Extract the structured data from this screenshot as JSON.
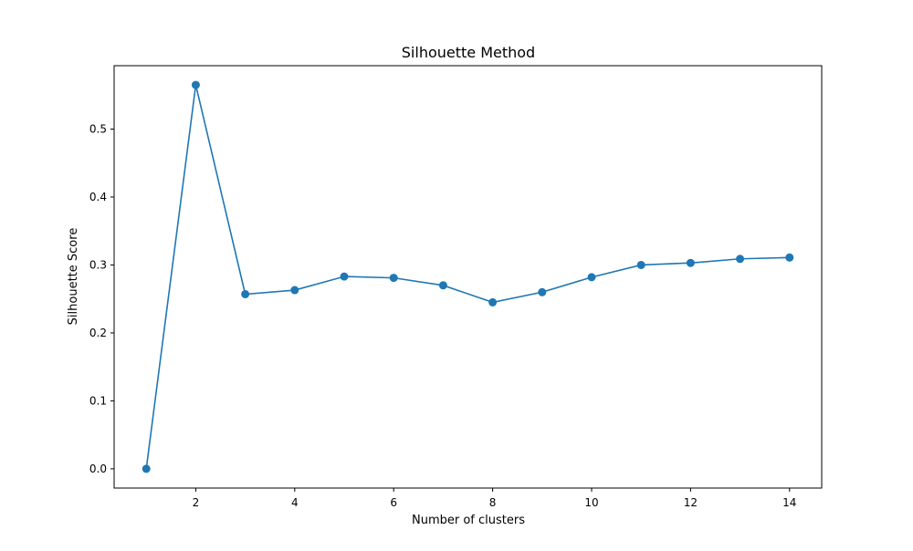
{
  "chart_data": {
    "type": "line",
    "title": "Silhouette Method",
    "xlabel": "Number of clusters",
    "ylabel": "Silhouette Score",
    "x": [
      1,
      2,
      3,
      4,
      5,
      6,
      7,
      8,
      9,
      10,
      11,
      12,
      13,
      14
    ],
    "series": [
      {
        "values": [
          0.0,
          0.565,
          0.257,
          0.263,
          0.283,
          0.281,
          0.27,
          0.245,
          0.26,
          0.282,
          0.3,
          0.303,
          0.309,
          0.311
        ],
        "color": "#1f77b4",
        "marker": "circle"
      }
    ],
    "xlim": [
      0.35,
      14.65
    ],
    "ylim": [
      -0.0283,
      0.5933
    ],
    "xticks": [
      2,
      4,
      6,
      8,
      10,
      12,
      14
    ],
    "yticks": [
      0.0,
      0.1,
      0.2,
      0.3,
      0.4,
      0.5
    ],
    "ytick_labels": [
      "0.0",
      "0.1",
      "0.2",
      "0.3",
      "0.4",
      "0.5"
    ],
    "grid": false,
    "legend": false
  }
}
